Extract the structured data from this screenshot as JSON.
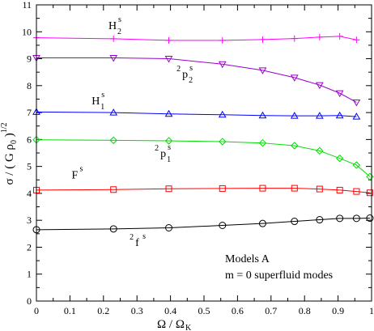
{
  "chart_data": {
    "type": "line",
    "xlabel": {
      "main": "Ω / Ω",
      "sub": "K"
    },
    "ylabel": {
      "main": "σ / ( G ρ",
      "sub": "0",
      "close": " )",
      "sup": "1/2"
    },
    "xlim": [
      0,
      1
    ],
    "ylim": [
      0,
      11
    ],
    "x_ticks": [
      "0",
      "0.1",
      "0.2",
      "0.3",
      "0.4",
      "0.5",
      "0.6",
      "0.7",
      "0.8",
      "0.9",
      "1"
    ],
    "y_ticks": [
      "0",
      "1",
      "2",
      "3",
      "4",
      "5",
      "6",
      "7",
      "8",
      "9",
      "10",
      "11"
    ],
    "x": [
      0.0,
      0.23,
      0.395,
      0.555,
      0.675,
      0.77,
      0.845,
      0.905,
      0.955
    ],
    "series": [
      {
        "key": "H2s",
        "color": "#ff00ff",
        "marker": "plus",
        "values": [
          9.78,
          9.74,
          9.68,
          9.68,
          9.71,
          9.75,
          9.8,
          9.83,
          9.7
        ],
        "end": [
          0.955,
          9.7
        ]
      },
      {
        "key": "2p2s",
        "color": "#9a00cc",
        "marker": "triangle-down",
        "values": [
          9.03,
          9.03,
          9.0,
          8.8,
          8.57,
          8.3,
          8.02,
          7.72,
          7.38
        ],
        "end": [
          0.955,
          7.38
        ]
      },
      {
        "key": "H1s",
        "color": "#0000ff",
        "marker": "triangle-up",
        "values": [
          7.02,
          7.0,
          6.95,
          6.92,
          6.89,
          6.88,
          6.88,
          6.89,
          6.85
        ],
        "end": [
          0.955,
          6.85
        ]
      },
      {
        "key": "2p1s",
        "color": "#00dd00",
        "marker": "diamond",
        "values": [
          5.99,
          5.97,
          5.95,
          5.92,
          5.87,
          5.77,
          5.58,
          5.3,
          5.05
        ],
        "end": [
          0.995,
          4.62
        ],
        "extra": [
          [
            0.995,
            4.62
          ]
        ]
      },
      {
        "key": "Fs",
        "color": "#ff0000",
        "marker": "square",
        "values": [
          4.12,
          4.14,
          4.17,
          4.18,
          4.19,
          4.19,
          4.16,
          4.12,
          4.07
        ],
        "extra": [
          [
            0.995,
            4.02
          ]
        ]
      },
      {
        "key": "2fs",
        "color": "#000000",
        "marker": "circle",
        "values": [
          2.65,
          2.68,
          2.72,
          2.81,
          2.88,
          2.96,
          3.02,
          3.07,
          3.07
        ],
        "extra": [
          [
            0.995,
            3.08
          ]
        ]
      }
    ],
    "annotations": [
      {
        "key": "H2s",
        "base": "H",
        "sub": "2",
        "sup": "s",
        "x": 0.215,
        "y": 10.1
      },
      {
        "key": "2p2s",
        "pre": "2",
        "base": "p",
        "sub": "2",
        "sup": "s",
        "x": 0.435,
        "y": 8.3
      },
      {
        "key": "H1s",
        "base": "H",
        "sub": "1",
        "sup": "s",
        "x": 0.165,
        "y": 7.3
      },
      {
        "key": "2p1s",
        "pre": "2",
        "base": "p",
        "sub": "1",
        "sup": "s",
        "x": 0.37,
        "y": 5.35
      },
      {
        "key": "Fs",
        "base": "F",
        "sup": "s",
        "x": 0.105,
        "y": 4.55
      },
      {
        "key": "2fs",
        "pre": "2",
        "base": "f",
        "sup": "s",
        "x": 0.295,
        "y": 2.05
      }
    ],
    "legend_text": [
      "Models A",
      "m = 0  superfluid modes"
    ]
  }
}
